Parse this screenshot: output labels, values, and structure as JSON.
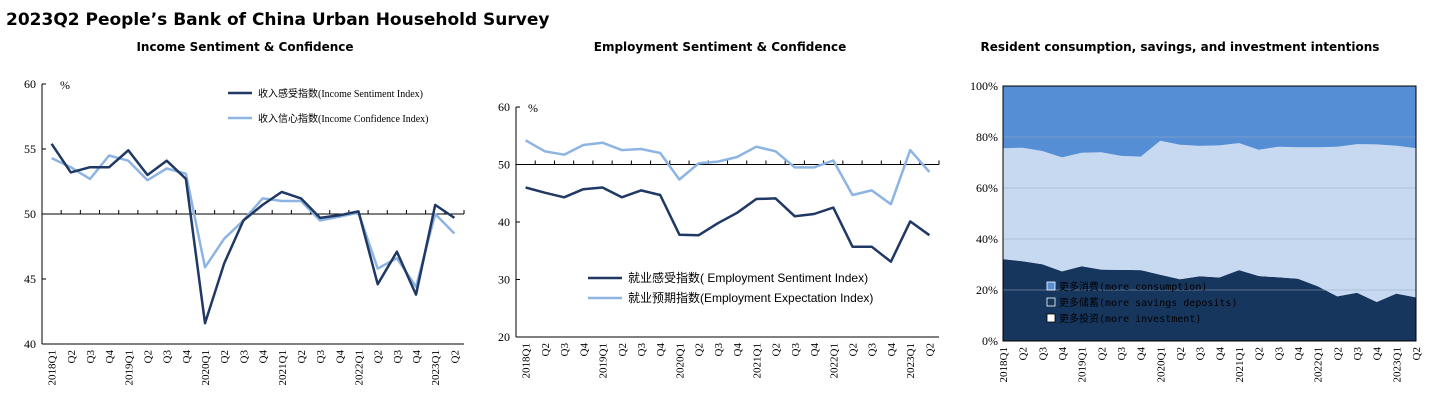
{
  "title": "2023Q2 People’s Bank of China Urban Household Survey",
  "colors": {
    "dark": "#1f3864",
    "light": "#8eb4e3",
    "cons": "#558ed5",
    "sav": "#c6d9f1",
    "inv": "#17365d"
  },
  "chart_data": [
    {
      "id": "income",
      "type": "line",
      "title": "Income Sentiment & Confidence",
      "unit_label": "%",
      "ylim": [
        40,
        60
      ],
      "yticks": [
        "40",
        "45",
        "50",
        "55",
        "60"
      ],
      "x_labels": [
        "2018Q1",
        "Q2",
        "Q3",
        "Q4",
        "2019Q1",
        "Q2",
        "Q3",
        "Q4",
        "2020Q1",
        "Q2",
        "Q3",
        "Q4",
        "2021Q1",
        "Q2",
        "Q3",
        "Q4",
        "2022Q1",
        "Q2",
        "Q3",
        "Q4",
        "2023Q1",
        "Q2"
      ],
      "series": [
        {
          "name": "收入感受指数(Income Sentiment Index)",
          "color": "#1f3864",
          "values": [
            55.4,
            53.2,
            53.6,
            53.6,
            54.9,
            53.0,
            54.1,
            52.7,
            41.6,
            46.2,
            49.5,
            50.7,
            51.7,
            51.2,
            49.7,
            49.9,
            50.2,
            44.6,
            47.1,
            43.8,
            50.7,
            49.7
          ]
        },
        {
          "name": "收入信心指数(Income Confidence Index)",
          "color": "#8eb4e3",
          "values": [
            54.3,
            53.6,
            52.7,
            54.5,
            54.1,
            52.6,
            53.5,
            53.1,
            45.9,
            48.1,
            49.5,
            51.2,
            51.0,
            51.0,
            49.5,
            49.8,
            50.1,
            45.8,
            46.6,
            44.4,
            50.0,
            48.5
          ]
        }
      ]
    },
    {
      "id": "employment",
      "type": "line",
      "title": "Employment Sentiment & Confidence",
      "unit_label": "%",
      "ylim": [
        20,
        60
      ],
      "yticks": [
        "20",
        "30",
        "40",
        "50",
        "60"
      ],
      "x_labels": [
        "2018Q1",
        "Q2",
        "Q3",
        "Q4",
        "2019Q1",
        "Q2",
        "Q3",
        "Q4",
        "2020Q1",
        "Q2",
        "Q3",
        "Q4",
        "2021Q1",
        "Q2",
        "Q3",
        "Q4",
        "2022Q1",
        "Q2",
        "Q3",
        "Q4",
        "2023Q1",
        "Q2"
      ],
      "series": [
        {
          "name": "就业感受指数( Employment Sentiment Index)",
          "color": "#1f3864",
          "values": [
            46.0,
            45.1,
            44.3,
            45.7,
            46.0,
            44.3,
            45.5,
            44.7,
            37.8,
            37.7,
            39.8,
            41.6,
            44.0,
            44.1,
            41.0,
            41.4,
            42.5,
            35.7,
            35.7,
            33.1,
            40.1,
            37.7
          ]
        },
        {
          "name": "就业预期指数(Employment Expectation Index)",
          "color": "#8eb4e3",
          "values": [
            54.2,
            52.3,
            51.7,
            53.4,
            53.8,
            52.5,
            52.7,
            52.0,
            47.4,
            50.2,
            50.5,
            51.3,
            53.1,
            52.3,
            49.5,
            49.5,
            50.7,
            44.7,
            45.5,
            43.1,
            52.5,
            48.7
          ]
        }
      ]
    },
    {
      "id": "intentions",
      "type": "area",
      "title": "Resident consumption, savings, and investment intentions",
      "ylim": [
        0,
        100
      ],
      "yticks": [
        "0%",
        "20%",
        "40%",
        "60%",
        "80%",
        "100%"
      ],
      "x_labels": [
        "2018Q1",
        "Q2",
        "Q3",
        "Q4",
        "2019Q1",
        "Q2",
        "Q3",
        "Q4",
        "2020Q1",
        "Q2",
        "Q3",
        "Q4",
        "2021Q1",
        "Q2",
        "Q3",
        "Q4",
        "2022Q1",
        "Q2",
        "Q3",
        "Q4",
        "2023Q1",
        "Q2"
      ],
      "stack_order": [
        "inv",
        "sav",
        "cons"
      ],
      "series": [
        {
          "key": "cons",
          "name": "更多消费(more consumption)",
          "color": "#558ed5",
          "values": [
            24.4,
            24.2,
            25.5,
            28.0,
            26.2,
            26.0,
            27.4,
            27.7,
            21.5,
            23.0,
            23.5,
            23.3,
            22.4,
            25.0,
            23.8,
            24.0,
            24.0,
            23.8,
            22.8,
            22.9,
            23.4,
            24.4
          ]
        },
        {
          "key": "sav",
          "name": "更多储蓄(more savings deposits)",
          "color": "#c6d9f1",
          "values": [
            43.5,
            44.5,
            44.4,
            44.7,
            44.5,
            46.0,
            44.7,
            44.5,
            52.5,
            52.8,
            51.1,
            51.8,
            49.8,
            49.5,
            51.2,
            51.6,
            54.5,
            58.7,
            58.3,
            61.8,
            58.0,
            58.5
          ]
        },
        {
          "key": "inv",
          "name": "更多投资(more investment)",
          "color": "#17365d",
          "values": [
            32.1,
            31.3,
            30.1,
            27.3,
            29.3,
            28.0,
            27.9,
            27.8,
            26.0,
            24.2,
            25.4,
            24.9,
            27.8,
            25.5,
            25.0,
            24.4,
            21.5,
            17.5,
            18.9,
            15.3,
            18.6,
            17.1
          ]
        }
      ]
    }
  ]
}
